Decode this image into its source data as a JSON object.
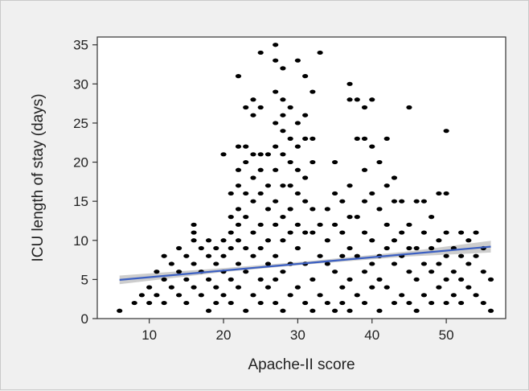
{
  "chart_data": {
    "type": "scatter",
    "title": "",
    "xlabel": "Apache-II score",
    "ylabel": "ICU length of stay (days)",
    "xlim": [
      3,
      58
    ],
    "ylim": [
      0,
      36
    ],
    "x_ticks": [
      10,
      20,
      30,
      40,
      50
    ],
    "y_ticks": [
      0,
      5,
      10,
      15,
      20,
      25,
      30,
      35
    ],
    "grid": false,
    "legend": "none",
    "colors": {
      "points": "#000000",
      "trend_line": "#3b5fc2",
      "confidence_band": "#c4c4c4",
      "plot_background": "#ffffff",
      "page_background": "#f0f0f0"
    },
    "points": [
      [
        6,
        1
      ],
      [
        8,
        2
      ],
      [
        9,
        3
      ],
      [
        10,
        2
      ],
      [
        10,
        4
      ],
      [
        11,
        6
      ],
      [
        11,
        3
      ],
      [
        12,
        8
      ],
      [
        12,
        5
      ],
      [
        12,
        2
      ],
      [
        13,
        7
      ],
      [
        13,
        4
      ],
      [
        14,
        9
      ],
      [
        14,
        6
      ],
      [
        14,
        3
      ],
      [
        15,
        8
      ],
      [
        15,
        5
      ],
      [
        15,
        2
      ],
      [
        16,
        12
      ],
      [
        16,
        11
      ],
      [
        16,
        10
      ],
      [
        16,
        7
      ],
      [
        16,
        4
      ],
      [
        17,
        9
      ],
      [
        17,
        6
      ],
      [
        17,
        3
      ],
      [
        18,
        10
      ],
      [
        18,
        8
      ],
      [
        18,
        5
      ],
      [
        18,
        1
      ],
      [
        19,
        9
      ],
      [
        19,
        7
      ],
      [
        19,
        4
      ],
      [
        19,
        2
      ],
      [
        20,
        21
      ],
      [
        20,
        10
      ],
      [
        20,
        8
      ],
      [
        20,
        6
      ],
      [
        20,
        3
      ],
      [
        21,
        16
      ],
      [
        21,
        13
      ],
      [
        21,
        11
      ],
      [
        21,
        9
      ],
      [
        21,
        5
      ],
      [
        21,
        2
      ],
      [
        22,
        31
      ],
      [
        22,
        22
      ],
      [
        22,
        19
      ],
      [
        22,
        17
      ],
      [
        22,
        14
      ],
      [
        22,
        12
      ],
      [
        22,
        10
      ],
      [
        22,
        7
      ],
      [
        22,
        4
      ],
      [
        23,
        27
      ],
      [
        23,
        22
      ],
      [
        23,
        20
      ],
      [
        23,
        16
      ],
      [
        23,
        13
      ],
      [
        23,
        9
      ],
      [
        23,
        6
      ],
      [
        23,
        1
      ],
      [
        24,
        28
      ],
      [
        24,
        26
      ],
      [
        24,
        21
      ],
      [
        24,
        18
      ],
      [
        24,
        15
      ],
      [
        24,
        11
      ],
      [
        24,
        8
      ],
      [
        24,
        3
      ],
      [
        25,
        34
      ],
      [
        25,
        27
      ],
      [
        25,
        21
      ],
      [
        25,
        19
      ],
      [
        25,
        16
      ],
      [
        25,
        12
      ],
      [
        25,
        9
      ],
      [
        25,
        5
      ],
      [
        25,
        2
      ],
      [
        26,
        21
      ],
      [
        26,
        17
      ],
      [
        26,
        14
      ],
      [
        26,
        10
      ],
      [
        26,
        7
      ],
      [
        26,
        4
      ],
      [
        27,
        35
      ],
      [
        27,
        33
      ],
      [
        27,
        29
      ],
      [
        27,
        25
      ],
      [
        27,
        22
      ],
      [
        27,
        19
      ],
      [
        27,
        15
      ],
      [
        27,
        12
      ],
      [
        27,
        8
      ],
      [
        27,
        5
      ],
      [
        27,
        2
      ],
      [
        28,
        32
      ],
      [
        28,
        28
      ],
      [
        28,
        26
      ],
      [
        28,
        24
      ],
      [
        28,
        21
      ],
      [
        28,
        17
      ],
      [
        28,
        13
      ],
      [
        28,
        10
      ],
      [
        28,
        6
      ],
      [
        28,
        1
      ],
      [
        29,
        27
      ],
      [
        29,
        23
      ],
      [
        29,
        20
      ],
      [
        29,
        17
      ],
      [
        29,
        14
      ],
      [
        29,
        11
      ],
      [
        29,
        7
      ],
      [
        29,
        3
      ],
      [
        30,
        33
      ],
      [
        30,
        25
      ],
      [
        30,
        22
      ],
      [
        30,
        19
      ],
      [
        30,
        16
      ],
      [
        30,
        12
      ],
      [
        30,
        9
      ],
      [
        30,
        4
      ],
      [
        31,
        31
      ],
      [
        31,
        26
      ],
      [
        31,
        23
      ],
      [
        31,
        18
      ],
      [
        31,
        15
      ],
      [
        31,
        11
      ],
      [
        31,
        7
      ],
      [
        31,
        2
      ],
      [
        32,
        29
      ],
      [
        32,
        23
      ],
      [
        32,
        20
      ],
      [
        32,
        14
      ],
      [
        32,
        11
      ],
      [
        32,
        5
      ],
      [
        32,
        1
      ],
      [
        33,
        34
      ],
      [
        33,
        12
      ],
      [
        33,
        8
      ],
      [
        33,
        3
      ],
      [
        34,
        14
      ],
      [
        34,
        10
      ],
      [
        34,
        7
      ],
      [
        34,
        2
      ],
      [
        35,
        20
      ],
      [
        35,
        16
      ],
      [
        35,
        12
      ],
      [
        35,
        6
      ],
      [
        35,
        1
      ],
      [
        36,
        15
      ],
      [
        36,
        11
      ],
      [
        36,
        8
      ],
      [
        36,
        4
      ],
      [
        36,
        2
      ],
      [
        37,
        30
      ],
      [
        37,
        28
      ],
      [
        37,
        17
      ],
      [
        37,
        13
      ],
      [
        37,
        9
      ],
      [
        37,
        5
      ],
      [
        37,
        1
      ],
      [
        38,
        28
      ],
      [
        38,
        23
      ],
      [
        38,
        13
      ],
      [
        38,
        8
      ],
      [
        38,
        3
      ],
      [
        39,
        27
      ],
      [
        39,
        23
      ],
      [
        39,
        19
      ],
      [
        39,
        15
      ],
      [
        39,
        11
      ],
      [
        39,
        6
      ],
      [
        39,
        2
      ],
      [
        40,
        28
      ],
      [
        40,
        22
      ],
      [
        40,
        16
      ],
      [
        40,
        10
      ],
      [
        40,
        7
      ],
      [
        40,
        4
      ],
      [
        41,
        20
      ],
      [
        41,
        14
      ],
      [
        41,
        8
      ],
      [
        41,
        5
      ],
      [
        41,
        1
      ],
      [
        42,
        23
      ],
      [
        42,
        17
      ],
      [
        42,
        12
      ],
      [
        42,
        9
      ],
      [
        42,
        4
      ],
      [
        43,
        18
      ],
      [
        43,
        15
      ],
      [
        43,
        10
      ],
      [
        43,
        7
      ],
      [
        43,
        2
      ],
      [
        44,
        15
      ],
      [
        44,
        11
      ],
      [
        44,
        8
      ],
      [
        44,
        3
      ],
      [
        45,
        27
      ],
      [
        45,
        12
      ],
      [
        45,
        9
      ],
      [
        45,
        6
      ],
      [
        45,
        2
      ],
      [
        46,
        15
      ],
      [
        46,
        9
      ],
      [
        46,
        5
      ],
      [
        46,
        1
      ],
      [
        47,
        15
      ],
      [
        47,
        11
      ],
      [
        47,
        7
      ],
      [
        47,
        3
      ],
      [
        48,
        13
      ],
      [
        48,
        9
      ],
      [
        48,
        6
      ],
      [
        48,
        2
      ],
      [
        49,
        16
      ],
      [
        49,
        10
      ],
      [
        49,
        7
      ],
      [
        49,
        4
      ],
      [
        50,
        24
      ],
      [
        50,
        16
      ],
      [
        50,
        11
      ],
      [
        50,
        8
      ],
      [
        50,
        5
      ],
      [
        50,
        2
      ],
      [
        51,
        9
      ],
      [
        51,
        6
      ],
      [
        51,
        3
      ],
      [
        52,
        11
      ],
      [
        52,
        8
      ],
      [
        52,
        5
      ],
      [
        52,
        2
      ],
      [
        53,
        10
      ],
      [
        53,
        7
      ],
      [
        53,
        4
      ],
      [
        54,
        11
      ],
      [
        54,
        8
      ],
      [
        54,
        3
      ],
      [
        55,
        9
      ],
      [
        55,
        6
      ],
      [
        55,
        2
      ],
      [
        56,
        5
      ],
      [
        56,
        1
      ]
    ],
    "trend_line": {
      "x_start": 6,
      "y_start": 4.95,
      "x_end": 56,
      "y_end": 9.2
    },
    "confidence_band": [
      {
        "x": 6,
        "lower": 4.4,
        "upper": 5.5
      },
      {
        "x": 20,
        "lower": 5.95,
        "upper": 6.45
      },
      {
        "x": 31,
        "lower": 6.9,
        "upper": 7.3
      },
      {
        "x": 45,
        "lower": 7.95,
        "upper": 8.6
      },
      {
        "x": 56,
        "lower": 8.45,
        "upper": 9.95
      }
    ]
  }
}
